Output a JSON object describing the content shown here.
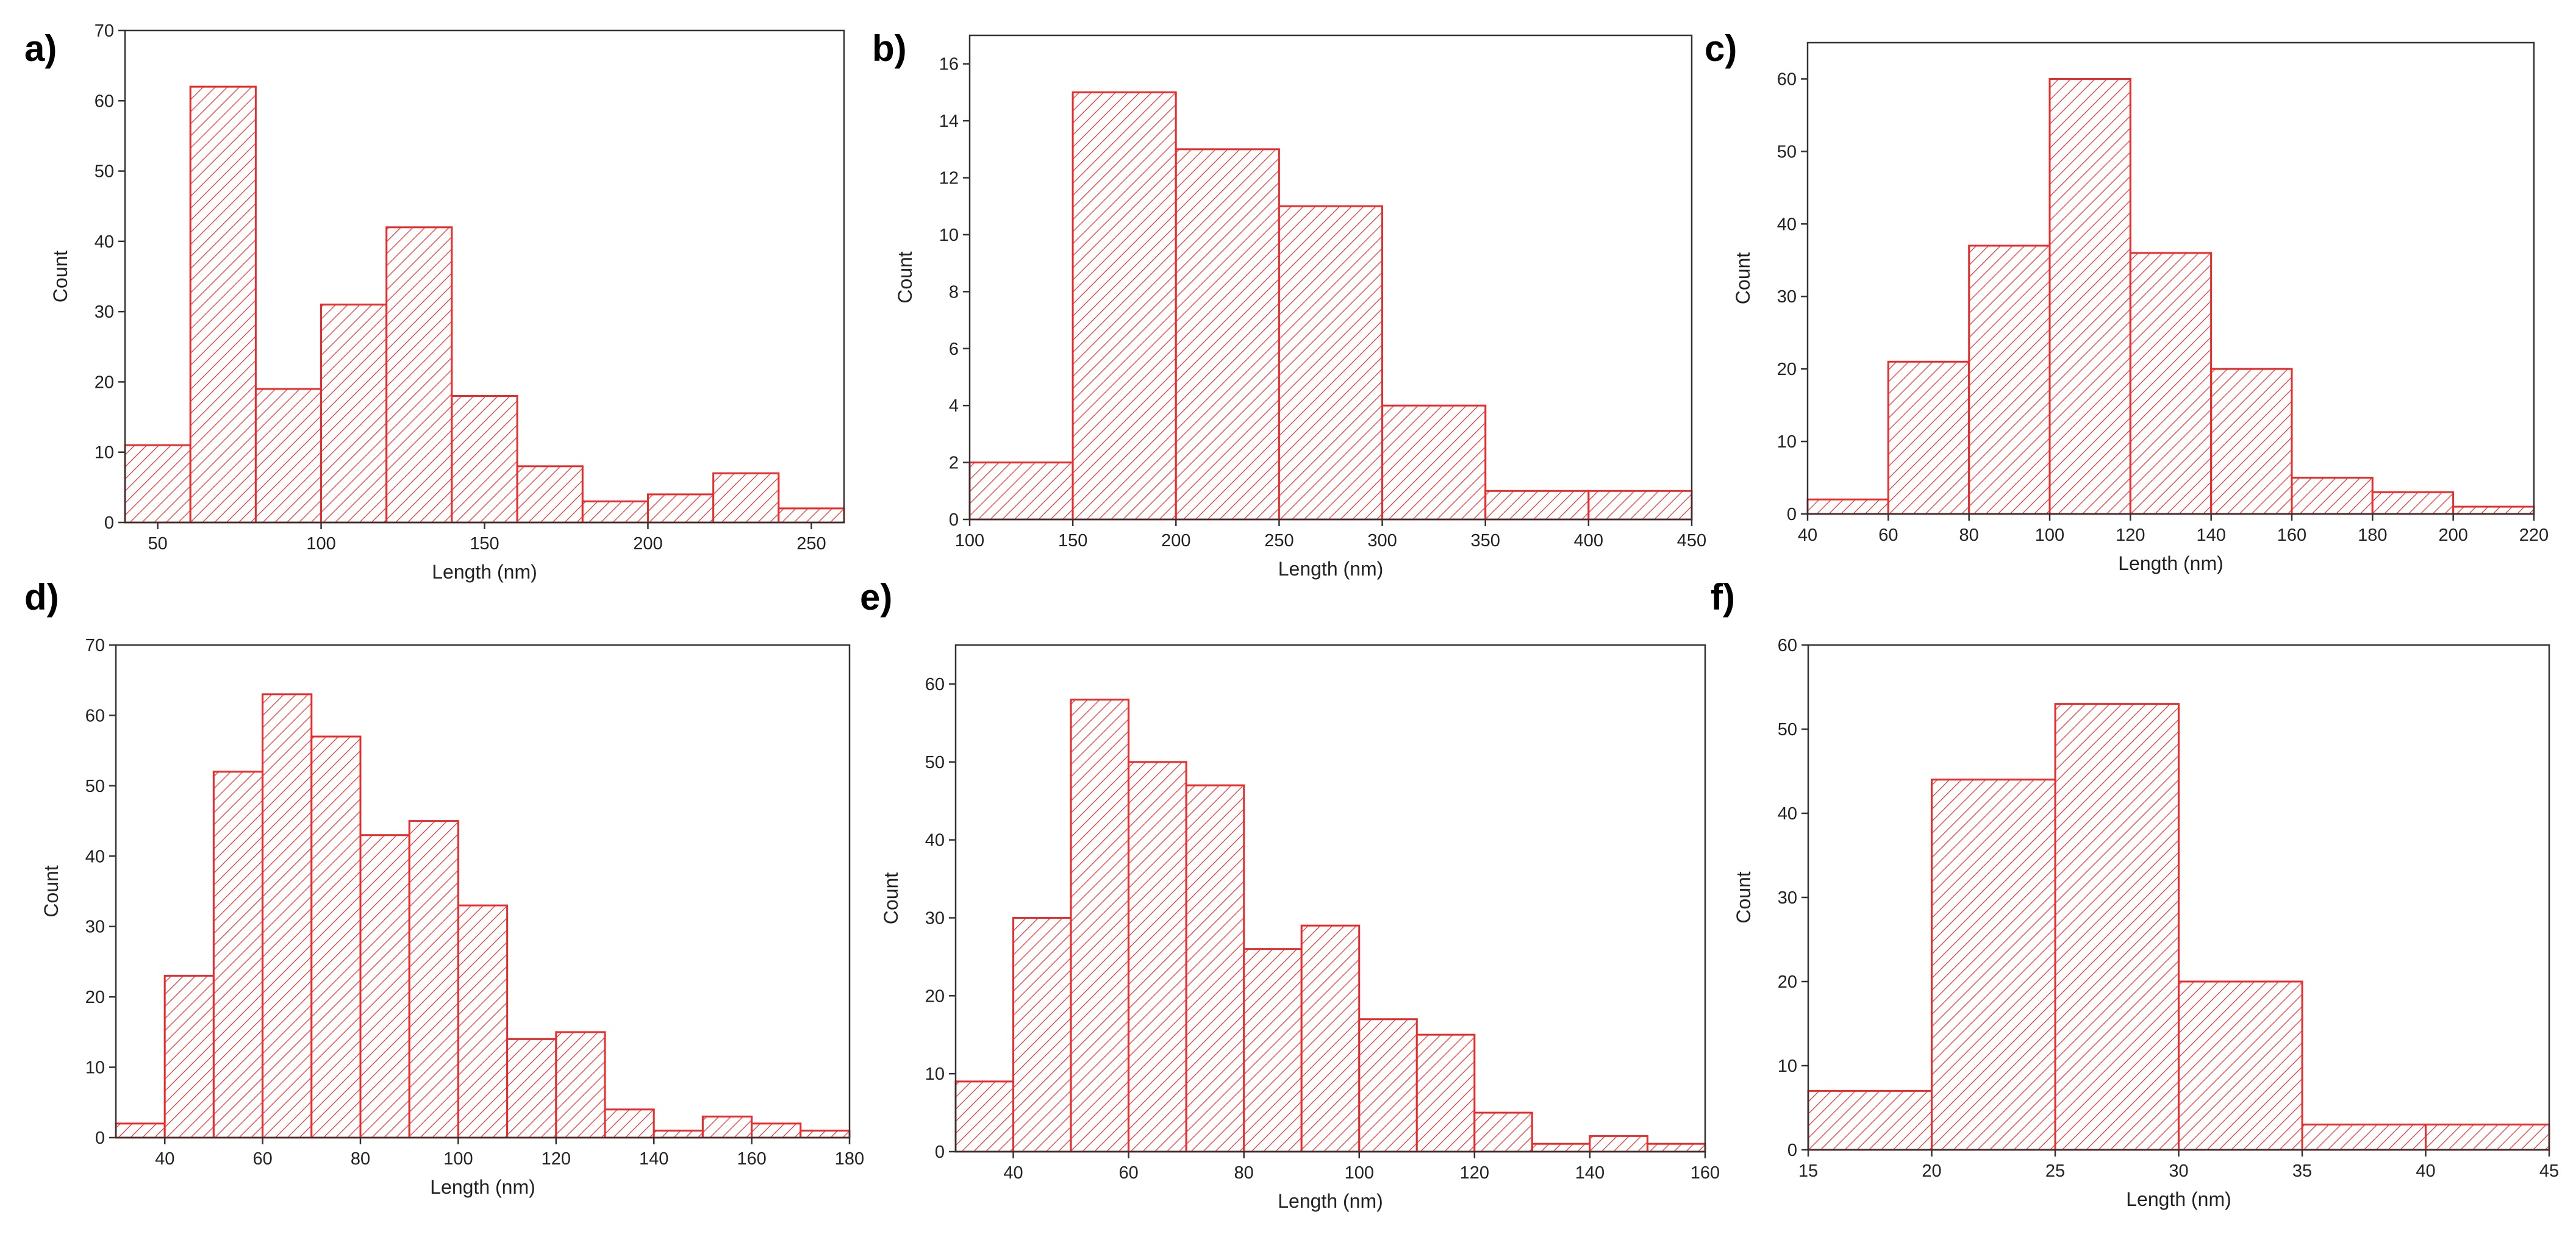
{
  "colors": {
    "bar_edge": "#ee2b2b",
    "hatch": "#ee2b2b",
    "axis": "#333333",
    "background": "#ffffff"
  },
  "chart_data": [
    {
      "panel_label": "a)",
      "type": "bar",
      "xlabel": "Length (nm)",
      "ylabel": "Count",
      "xlim": [
        40,
        260
      ],
      "ylim": [
        0,
        70
      ],
      "xticks": [
        50,
        100,
        150,
        200,
        250
      ],
      "yticks": [
        0,
        10,
        20,
        30,
        40,
        50,
        60,
        70
      ],
      "bin_edges": [
        40,
        60,
        80,
        100,
        120,
        140,
        160,
        180,
        200,
        220,
        240,
        260
      ],
      "values": [
        11,
        62,
        19,
        31,
        42,
        18,
        8,
        3,
        4,
        7,
        2
      ]
    },
    {
      "panel_label": "b)",
      "type": "bar",
      "xlabel": "Length (nm)",
      "ylabel": "Count",
      "xlim": [
        100,
        450
      ],
      "ylim": [
        0,
        17
      ],
      "xticks": [
        100,
        150,
        200,
        250,
        300,
        350,
        400,
        450
      ],
      "yticks": [
        0,
        2,
        4,
        6,
        8,
        10,
        12,
        14,
        16
      ],
      "bin_edges": [
        100,
        150,
        200,
        250,
        300,
        350,
        400,
        450
      ],
      "values": [
        2,
        15,
        13,
        11,
        4,
        1,
        1
      ]
    },
    {
      "panel_label": "c)",
      "type": "bar",
      "xlabel": "Length (nm)",
      "ylabel": "Count",
      "xlim": [
        40,
        220
      ],
      "ylim": [
        0,
        65
      ],
      "xticks": [
        40,
        60,
        80,
        100,
        120,
        140,
        160,
        180,
        200,
        220
      ],
      "yticks": [
        0,
        10,
        20,
        30,
        40,
        50,
        60
      ],
      "bin_edges": [
        40,
        60,
        80,
        100,
        120,
        140,
        160,
        180,
        200,
        220
      ],
      "values": [
        2,
        21,
        37,
        60,
        36,
        20,
        5,
        3,
        1
      ]
    },
    {
      "panel_label": "d)",
      "type": "bar",
      "xlabel": "Length (nm)",
      "ylabel": "Count",
      "xlim": [
        30,
        180
      ],
      "ylim": [
        0,
        70
      ],
      "xticks": [
        40,
        60,
        80,
        100,
        120,
        140,
        160,
        180
      ],
      "yticks": [
        0,
        10,
        20,
        30,
        40,
        50,
        60,
        70
      ],
      "bin_edges": [
        30,
        40,
        50,
        60,
        70,
        80,
        90,
        100,
        110,
        120,
        130,
        140,
        150,
        160,
        170,
        180
      ],
      "values": [
        2,
        23,
        52,
        63,
        57,
        43,
        45,
        33,
        14,
        15,
        4,
        1,
        3,
        2,
        1
      ]
    },
    {
      "panel_label": "e)",
      "type": "bar",
      "xlabel": "Length (nm)",
      "ylabel": "Count",
      "xlim": [
        30,
        160
      ],
      "ylim": [
        0,
        65
      ],
      "xticks": [
        40,
        60,
        80,
        100,
        120,
        140,
        160
      ],
      "yticks": [
        0,
        10,
        20,
        30,
        40,
        50,
        60
      ],
      "bin_edges": [
        30,
        40,
        50,
        60,
        70,
        80,
        90,
        100,
        110,
        120,
        130,
        140,
        150,
        160
      ],
      "values": [
        9,
        30,
        58,
        50,
        47,
        26,
        29,
        17,
        15,
        5,
        1,
        2,
        1
      ]
    },
    {
      "panel_label": "f)",
      "type": "bar",
      "xlabel": "Length (nm)",
      "ylabel": "Count",
      "xlim": [
        15,
        45
      ],
      "ylim": [
        0,
        60
      ],
      "xticks": [
        15,
        20,
        25,
        30,
        35,
        40,
        45
      ],
      "yticks": [
        0,
        10,
        20,
        30,
        40,
        50,
        60
      ],
      "bin_edges": [
        15,
        20,
        25,
        30,
        35,
        40,
        45
      ],
      "values": [
        7,
        44,
        53,
        20,
        3,
        3
      ]
    }
  ]
}
